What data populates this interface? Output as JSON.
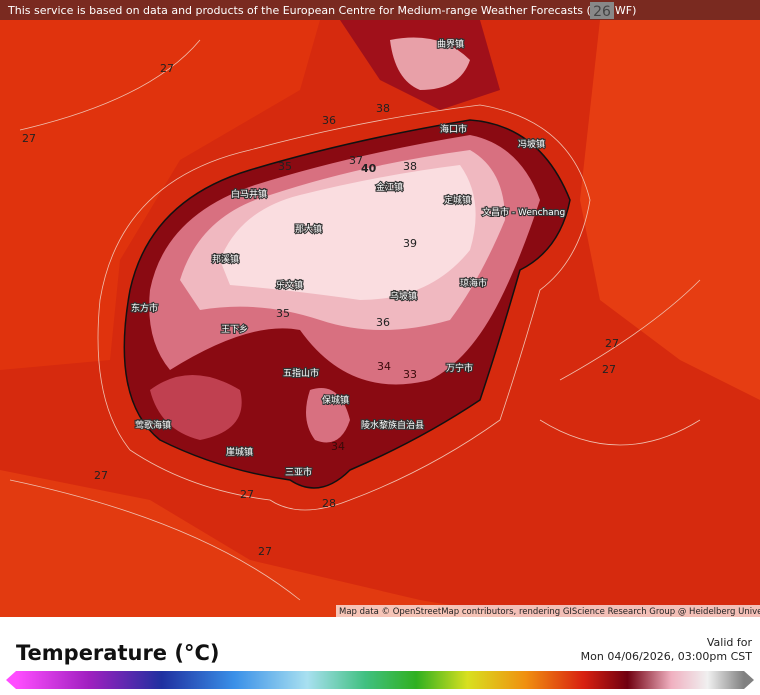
{
  "header": {
    "notice": "This service is based on data and products of the European Centre for Medium-range Weather Forecasts (ECMWF)",
    "badge": "26"
  },
  "places": [
    "曲界镇",
    "海口市",
    "冯坡镇",
    "金江镇",
    "白马井镇",
    "定城镇",
    "文昌市 - Wenchang",
    "那大镇",
    "邦溪镇",
    "琼海市",
    "乐文镇",
    "乌坡镇",
    "东方市",
    "王下乡",
    "五指山市",
    "万宁市",
    "保城镇",
    "莺歌海镇",
    "陵水黎族自治县",
    "崖城镇",
    "三亚市"
  ],
  "contour_labels": [
    27,
    36,
    38,
    37,
    40,
    38,
    39,
    35,
    36,
    35,
    34,
    33,
    34,
    27,
    27,
    27,
    27,
    28,
    27,
    27
  ],
  "attribution": "Map data © OpenStreetMap contributors, rendering GIScience Research Group @ Heidelberg University",
  "legend": {
    "title": "Temperature (°C)",
    "valid_label": "Valid for",
    "valid_time": "Mon 04/06/2026, 03:00pm CST"
  }
}
